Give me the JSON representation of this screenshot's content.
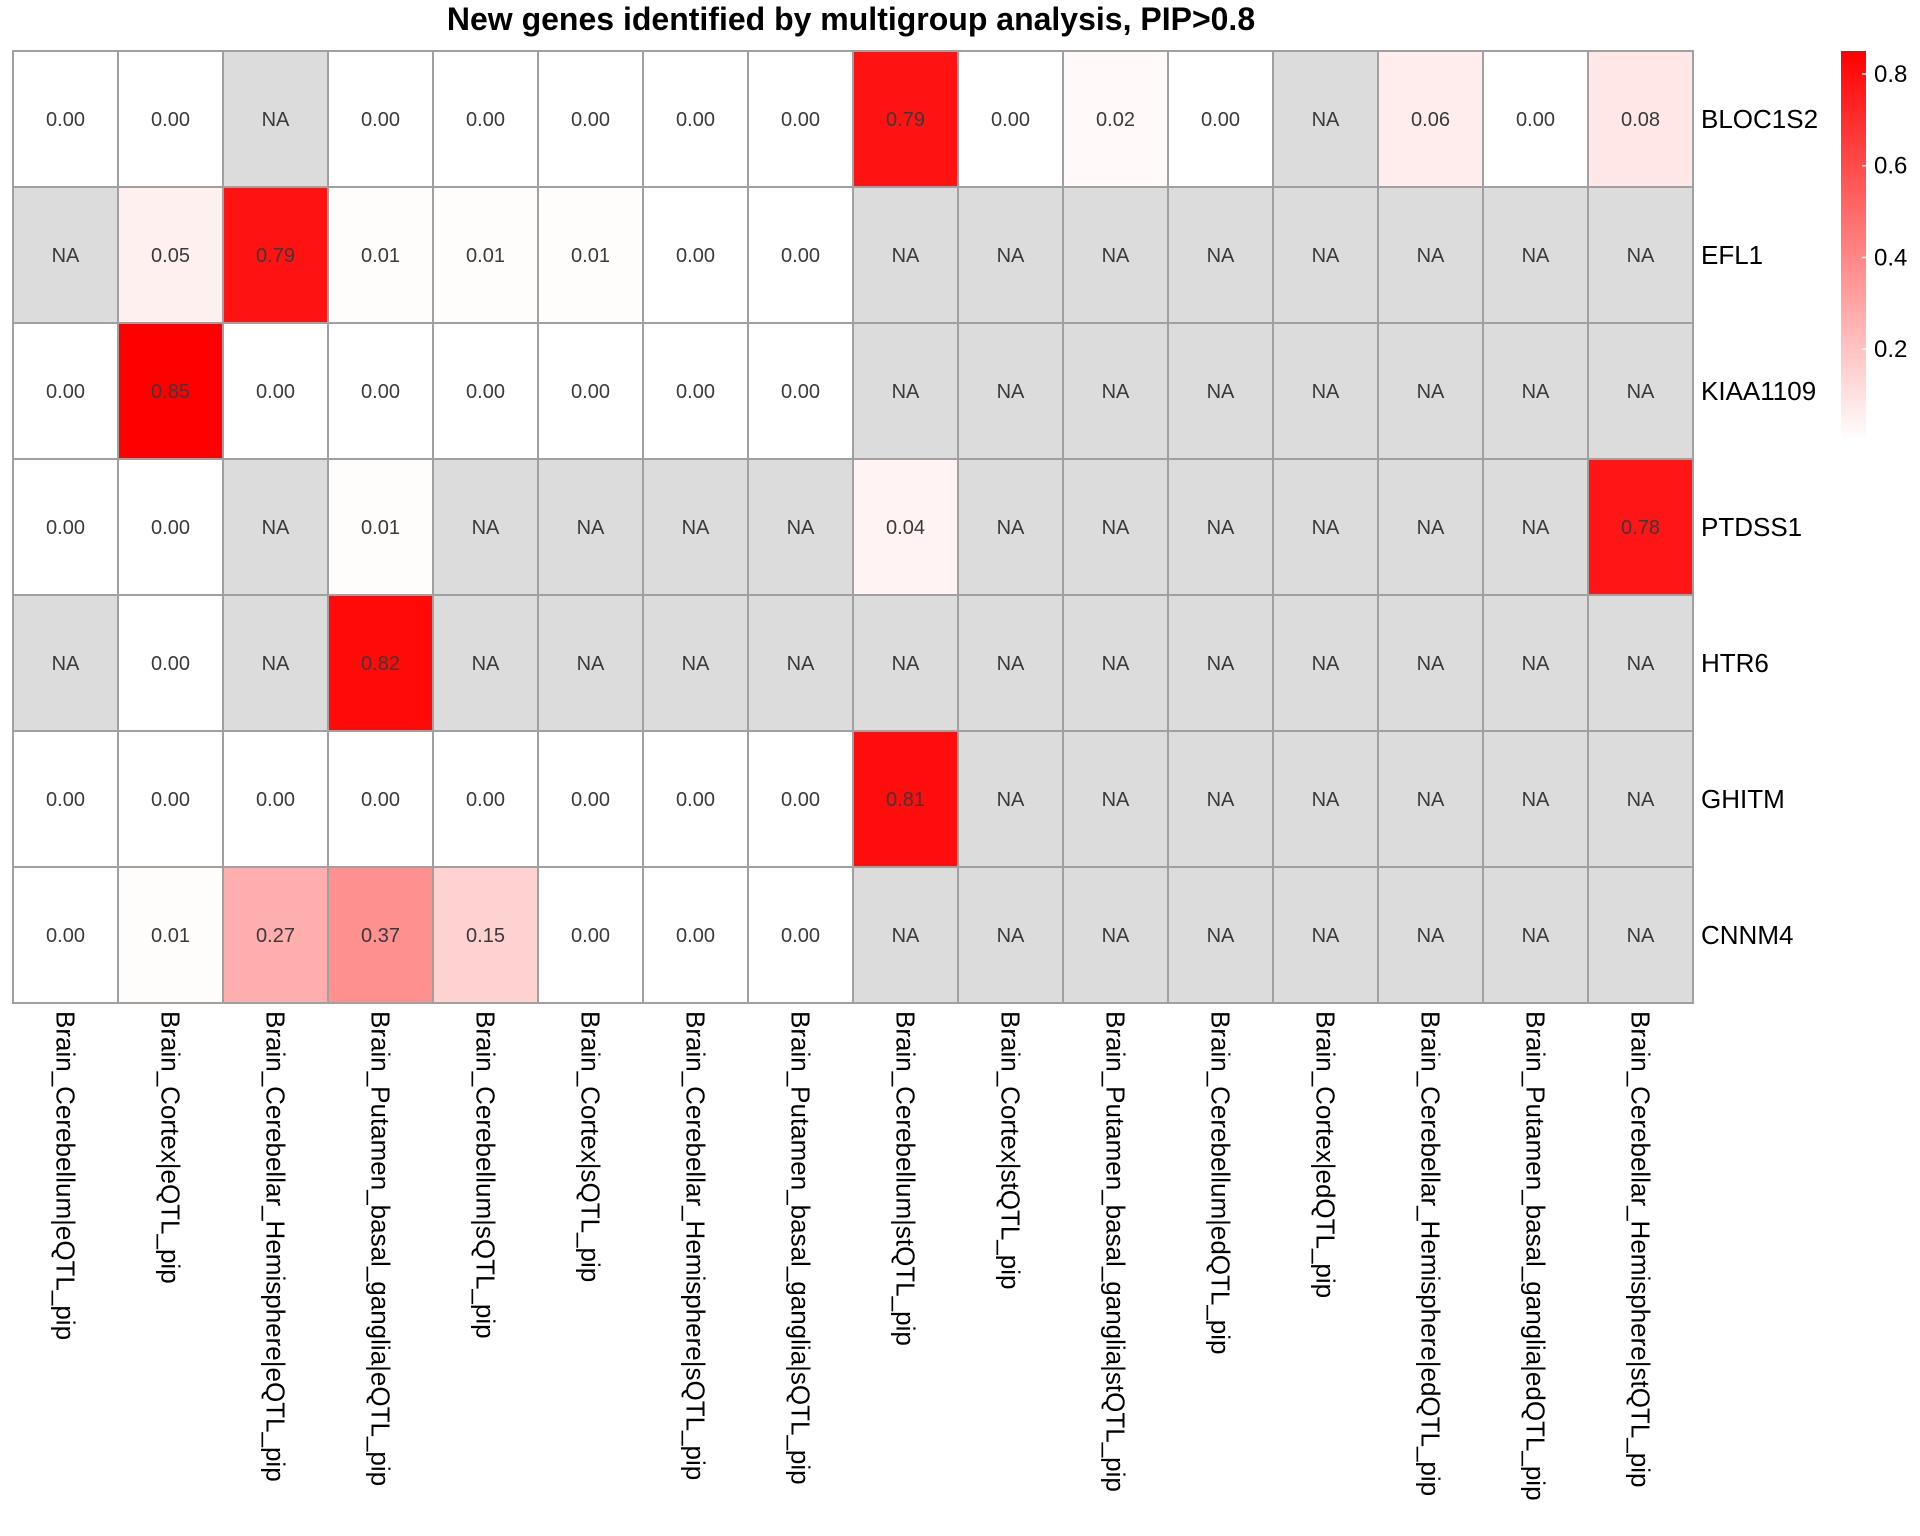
{
  "chart_data": {
    "type": "heatmap",
    "title": "New genes identified by multigroup analysis, PIP>0.8",
    "rows": [
      "BLOC1S2",
      "EFL1",
      "KIAA1109",
      "PTDSS1",
      "HTR6",
      "GHITM",
      "CNNM4"
    ],
    "columns": [
      "Brain_Cerebellum|eQTL_pip",
      "Brain_Cortex|eQTL_pip",
      "Brain_Cerebellar_Hemisphere|eQTL_pip",
      "Brain_Putamen_basal_ganglia|eQTL_pip",
      "Brain_Cerebellum|sQTL_pip",
      "Brain_Cortex|sQTL_pip",
      "Brain_Cerebellar_Hemisphere|sQTL_pip",
      "Brain_Putamen_basal_ganglia|sQTL_pip",
      "Brain_Cerebellum|stQTL_pip",
      "Brain_Cortex|stQTL_pip",
      "Brain_Putamen_basal_ganglia|stQTL_pip",
      "Brain_Cerebellum|edQTL_pip",
      "Brain_Cortex|edQTL_pip",
      "Brain_Cerebellar_Hemisphere|edQTL_pip",
      "Brain_Putamen_basal_ganglia|edQTL_pip",
      "Brain_Cerebellar_Hemisphere|stQTL_pip"
    ],
    "values": [
      [
        0.0,
        0.0,
        null,
        0.0,
        0.0,
        0.0,
        0.0,
        0.0,
        0.79,
        0.0,
        0.02,
        0.0,
        null,
        0.06,
        0.0,
        0.08
      ],
      [
        null,
        0.05,
        0.79,
        0.01,
        0.01,
        0.01,
        0.0,
        0.0,
        null,
        null,
        null,
        null,
        null,
        null,
        null,
        null
      ],
      [
        0.0,
        0.85,
        0.0,
        0.0,
        0.0,
        0.0,
        0.0,
        0.0,
        null,
        null,
        null,
        null,
        null,
        null,
        null,
        null
      ],
      [
        0.0,
        0.0,
        null,
        0.01,
        null,
        null,
        null,
        null,
        0.04,
        null,
        null,
        null,
        null,
        null,
        null,
        0.78
      ],
      [
        null,
        0.0,
        null,
        0.82,
        null,
        null,
        null,
        null,
        null,
        null,
        null,
        null,
        null,
        null,
        null,
        null
      ],
      [
        0.0,
        0.0,
        0.0,
        0.0,
        0.0,
        0.0,
        0.0,
        0.0,
        0.81,
        null,
        null,
        null,
        null,
        null,
        null,
        null
      ],
      [
        0.0,
        0.01,
        0.27,
        0.37,
        0.15,
        0.0,
        0.0,
        0.0,
        null,
        null,
        null,
        null,
        null,
        null,
        null,
        null
      ]
    ],
    "na_label": "NA",
    "color_scale": {
      "low": "#ffffff",
      "high": "#ff0000",
      "na": "#dcdcdc",
      "min": 0,
      "max": 0.85
    },
    "legend": {
      "ticks": [
        0.2,
        0.4,
        0.6,
        0.8
      ],
      "tick_labels": [
        "0.2",
        "0.4",
        "0.6",
        "0.8"
      ],
      "placement": "top-right"
    }
  }
}
